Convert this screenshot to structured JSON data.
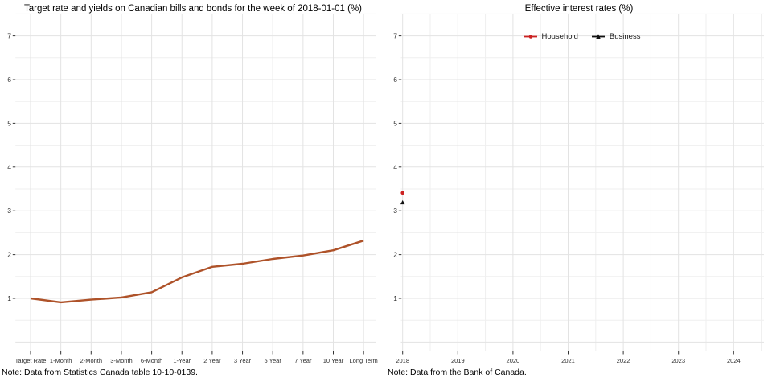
{
  "colors": {
    "grid_major": "#e3e3e3",
    "grid_minor": "#efefef",
    "tick": "#333333",
    "axis_text": "#2e2e2e",
    "yield_line": "#ae5229",
    "household_red": "#cc2222",
    "business_black": "#111111"
  },
  "chart_data": [
    {
      "type": "line",
      "title": "Target rate and yields on Canadian bills and bonds for the week of 2018-01-01 (%)",
      "note": "Note: Data from Statistics Canada table 10-10-0139.",
      "categories": [
        "Target Rate",
        "1-Month",
        "2-Month",
        "3-Month",
        "6-Month",
        "1-Year",
        "2 Year",
        "3 Year",
        "5 Year",
        "7 Year",
        "10 Year",
        "Long Term"
      ],
      "values": [
        1.0,
        0.91,
        0.97,
        1.02,
        1.14,
        1.48,
        1.72,
        1.79,
        1.9,
        1.98,
        2.1,
        2.32
      ],
      "xlabel": "",
      "ylabel": "",
      "yticks": [
        1,
        2,
        3,
        4,
        5,
        6,
        7
      ],
      "ylim": [
        -0.2,
        7.5
      ],
      "grid": "major+minor",
      "legend_position": "none",
      "line_color": "#ae5229"
    },
    {
      "type": "scatter",
      "title": "Effective interest rates (%)",
      "note": "Note: Data from the Bank of Canada.",
      "x_ticks": [
        2018,
        2019,
        2020,
        2021,
        2022,
        2023,
        2024
      ],
      "xlim": [
        2018,
        2024.55
      ],
      "yticks": [
        1,
        2,
        3,
        4,
        5,
        6,
        7
      ],
      "ylim": [
        -0.2,
        7.5
      ],
      "grid": "major+minor",
      "legend_position": "top-center",
      "series": [
        {
          "name": "Household",
          "color": "#cc2222",
          "marker": "circle",
          "x": [
            2018.0
          ],
          "values": [
            3.41
          ]
        },
        {
          "name": "Business",
          "color": "#111111",
          "marker": "triangle",
          "x": [
            2018.0
          ],
          "values": [
            3.19
          ]
        }
      ]
    }
  ]
}
